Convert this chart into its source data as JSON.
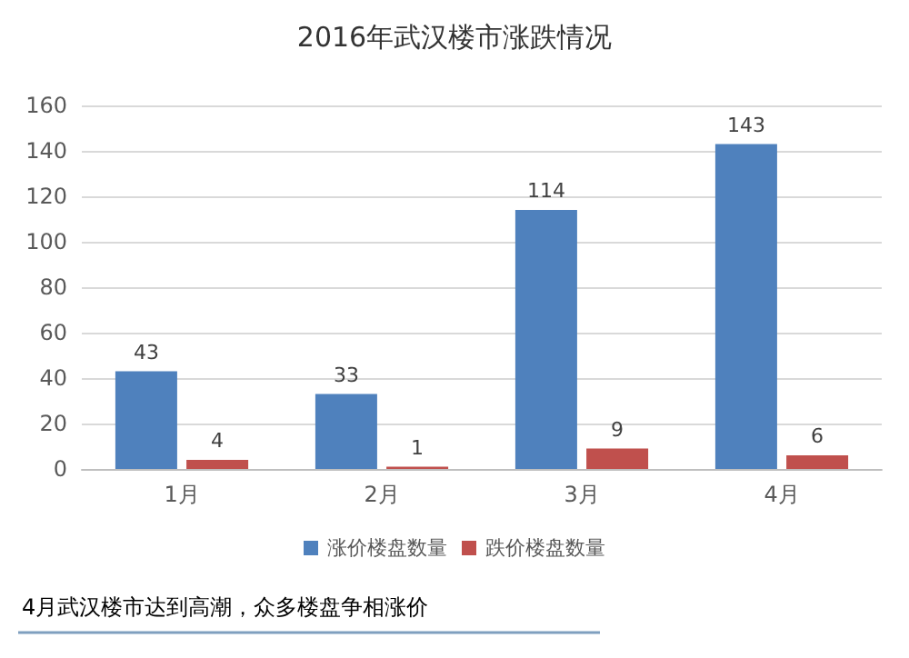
{
  "chart_data": {
    "type": "bar",
    "title": "2016年武汉楼市涨跌情况",
    "categories": [
      "1月",
      "2月",
      "3月",
      "4月"
    ],
    "series": [
      {
        "name": "涨价楼盘数量",
        "color": "#4f81bd",
        "values": [
          43,
          33,
          114,
          143
        ]
      },
      {
        "name": "跌价楼盘数量",
        "color": "#c0504d",
        "values": [
          4,
          1,
          9,
          6
        ]
      }
    ],
    "ylim": [
      0,
      160
    ],
    "yticks": [
      0,
      20,
      40,
      60,
      80,
      100,
      120,
      140,
      160
    ],
    "grid": "y",
    "legend": "bottom",
    "data_labels": true,
    "annotations": [
      "4月武汉楼市达到高潮，众多楼盘争相涨价"
    ]
  }
}
